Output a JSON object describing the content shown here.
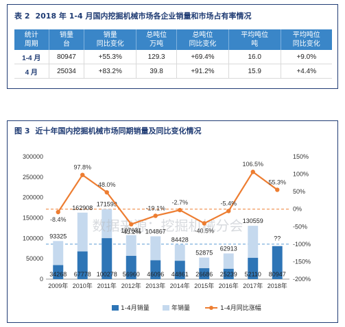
{
  "table": {
    "num": "表 2",
    "title": "2018 年 1-4 月国内挖掘机械市场各企业销量和市场占有率情况",
    "headers": [
      "统计\n周期",
      "销量\n台",
      "销量\n同比变化",
      "总吨位\n万吨",
      "总吨位\n同比变化",
      "平均吨位\n吨",
      "平均吨位\n同比变化"
    ],
    "rows": [
      [
        "1-4 月",
        "80947",
        "+55.3%",
        "129.3",
        "+69.4%",
        "16.0",
        "+9.0%"
      ],
      [
        "4 月",
        "25034",
        "+83.2%",
        "39.8",
        "+91.2%",
        "15.9",
        "+4.4%"
      ]
    ]
  },
  "chart": {
    "num": "图 3",
    "title": "近十年国内挖掘机械市场同期销量及同比变化情况",
    "watermark": "数据来源：挖掘机械分会",
    "colors": {
      "ytd_bar": "#2e75b6",
      "year_bar": "#c5d9ee",
      "line": "#ed7d31",
      "ref": "#ed7d31",
      "ref2": "#5b9bd5"
    },
    "legend": [
      "1-4月销量",
      "年销量",
      "1-4月同比涨幅"
    ]
  },
  "chart_data": {
    "type": "bar",
    "categories": [
      "2009年",
      "2010年",
      "2011年",
      "2012年",
      "2013年",
      "2014年",
      "2015年",
      "2016年",
      "2017年",
      "2018年"
    ],
    "series": [
      {
        "name": "1-4月销量",
        "values": [
          34268,
          67778,
          100278,
          56960,
          46096,
          44861,
          26686,
          25239,
          52110,
          80947
        ],
        "labels": [
          "34268",
          "67778",
          "100278",
          "56960",
          "46096",
          "44861",
          "26686",
          "25239",
          "52110",
          "80947"
        ]
      },
      {
        "name": "年销量",
        "values": [
          93325,
          162908,
          171599,
          107631,
          104867,
          84428,
          52875,
          62913,
          130559,
          null
        ],
        "labels": [
          "93325",
          "162908",
          "171599",
          "107631",
          "104867",
          "84428",
          "52875",
          "62913",
          "130559",
          "??"
        ]
      },
      {
        "name": "1-4月同比涨幅",
        "axis": "right",
        "values": [
          -8.4,
          97.8,
          48.0,
          -43.2,
          -19.1,
          -2.7,
          -40.5,
          -5.4,
          106.5,
          55.3
        ],
        "labels": [
          "-8.4%",
          "97.8%",
          "48.0%",
          "-43.2%",
          "-19.1%",
          "-2.7%",
          "-40.5%",
          "-5.4%",
          "106.5%",
          "55.3%"
        ]
      }
    ],
    "ylim": [
      0,
      300000
    ],
    "yticks": [
      "0",
      "50000",
      "100000",
      "150000",
      "200000",
      "250000",
      "300000"
    ],
    "y2lim": [
      -200,
      150
    ],
    "y2ticks": [
      "-200%",
      "-150%",
      "-100%",
      "-50%",
      "0%",
      "50%",
      "100%",
      "150%"
    ],
    "ref_lines": [
      0,
      -100
    ],
    "legend_position": "bottom"
  }
}
